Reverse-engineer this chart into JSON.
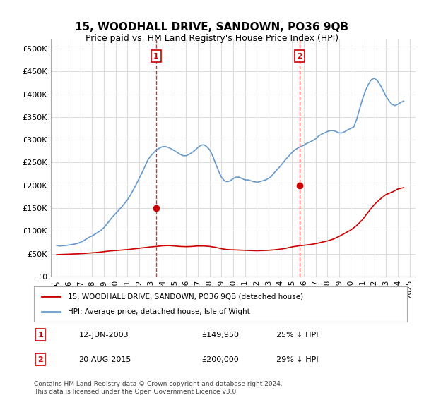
{
  "title": "15, WOODHALL DRIVE, SANDOWN, PO36 9QB",
  "subtitle": "Price paid vs. HM Land Registry's House Price Index (HPI)",
  "hpi_color": "#6699cc",
  "price_color": "#cc0000",
  "marker_color": "#cc0000",
  "background_color": "#ffffff",
  "grid_color": "#dddddd",
  "ylim": [
    0,
    520000
  ],
  "yticks": [
    0,
    50000,
    100000,
    150000,
    200000,
    250000,
    300000,
    350000,
    400000,
    450000,
    500000
  ],
  "ytick_labels": [
    "£0",
    "£50K",
    "£100K",
    "£150K",
    "£200K",
    "£250K",
    "£300K",
    "£350K",
    "£400K",
    "£450K",
    "£500K"
  ],
  "xlim_start": 1994.5,
  "xlim_end": 2025.5,
  "xticks": [
    1995,
    1996,
    1997,
    1998,
    1999,
    2000,
    2001,
    2002,
    2003,
    2004,
    2005,
    2006,
    2007,
    2008,
    2009,
    2010,
    2011,
    2012,
    2013,
    2014,
    2015,
    2016,
    2017,
    2018,
    2019,
    2020,
    2021,
    2022,
    2023,
    2024,
    2025
  ],
  "sale1_year": 2003.44,
  "sale1_price": 149950,
  "sale1_label": "1",
  "sale1_date": "12-JUN-2003",
  "sale1_pct": "25% ↓ HPI",
  "sale2_year": 2015.63,
  "sale2_price": 200000,
  "sale2_label": "2",
  "sale2_date": "20-AUG-2015",
  "sale2_pct": "29% ↓ HPI",
  "legend_line1": "15, WOODHALL DRIVE, SANDOWN, PO36 9QB (detached house)",
  "legend_line2": "HPI: Average price, detached house, Isle of Wight",
  "footer": "Contains HM Land Registry data © Crown copyright and database right 2024.\nThis data is licensed under the Open Government Licence v3.0.",
  "hpi_data_x": [
    1995.0,
    1995.25,
    1995.5,
    1995.75,
    1996.0,
    1996.25,
    1996.5,
    1996.75,
    1997.0,
    1997.25,
    1997.5,
    1997.75,
    1998.0,
    1998.25,
    1998.5,
    1998.75,
    1999.0,
    1999.25,
    1999.5,
    1999.75,
    2000.0,
    2000.25,
    2000.5,
    2000.75,
    2001.0,
    2001.25,
    2001.5,
    2001.75,
    2002.0,
    2002.25,
    2002.5,
    2002.75,
    2003.0,
    2003.25,
    2003.5,
    2003.75,
    2004.0,
    2004.25,
    2004.5,
    2004.75,
    2005.0,
    2005.25,
    2005.5,
    2005.75,
    2006.0,
    2006.25,
    2006.5,
    2006.75,
    2007.0,
    2007.25,
    2007.5,
    2007.75,
    2008.0,
    2008.25,
    2008.5,
    2008.75,
    2009.0,
    2009.25,
    2009.5,
    2009.75,
    2010.0,
    2010.25,
    2010.5,
    2010.75,
    2011.0,
    2011.25,
    2011.5,
    2011.75,
    2012.0,
    2012.25,
    2012.5,
    2012.75,
    2013.0,
    2013.25,
    2013.5,
    2013.75,
    2014.0,
    2014.25,
    2014.5,
    2014.75,
    2015.0,
    2015.25,
    2015.5,
    2015.75,
    2016.0,
    2016.25,
    2016.5,
    2016.75,
    2017.0,
    2017.25,
    2017.5,
    2017.75,
    2018.0,
    2018.25,
    2018.5,
    2018.75,
    2019.0,
    2019.25,
    2019.5,
    2019.75,
    2020.0,
    2020.25,
    2020.5,
    2020.75,
    2021.0,
    2021.25,
    2021.5,
    2021.75,
    2022.0,
    2022.25,
    2022.5,
    2022.75,
    2023.0,
    2023.25,
    2023.5,
    2023.75,
    2024.0,
    2024.25,
    2024.5
  ],
  "hpi_data_y": [
    68000,
    67000,
    67500,
    68000,
    69000,
    70000,
    71000,
    72500,
    75000,
    78000,
    82000,
    86000,
    89000,
    93000,
    97000,
    101000,
    107000,
    115000,
    123000,
    131000,
    138000,
    145000,
    152000,
    160000,
    168000,
    178000,
    190000,
    202000,
    215000,
    228000,
    242000,
    256000,
    265000,
    272000,
    278000,
    282000,
    285000,
    285000,
    283000,
    280000,
    276000,
    272000,
    268000,
    265000,
    265000,
    268000,
    272000,
    277000,
    283000,
    288000,
    289000,
    285000,
    278000,
    265000,
    248000,
    232000,
    218000,
    210000,
    208000,
    210000,
    215000,
    218000,
    218000,
    215000,
    212000,
    212000,
    210000,
    208000,
    207000,
    208000,
    210000,
    212000,
    215000,
    220000,
    228000,
    235000,
    242000,
    250000,
    258000,
    265000,
    272000,
    278000,
    282000,
    285000,
    288000,
    292000,
    295000,
    298000,
    302000,
    308000,
    312000,
    315000,
    318000,
    320000,
    320000,
    318000,
    315000,
    315000,
    318000,
    322000,
    325000,
    328000,
    345000,
    368000,
    390000,
    408000,
    422000,
    432000,
    435000,
    430000,
    420000,
    408000,
    395000,
    385000,
    378000,
    375000,
    378000,
    382000,
    385000
  ],
  "price_data_x": [
    1995.0,
    1995.5,
    1996.0,
    1996.5,
    1997.0,
    1997.5,
    1998.0,
    1998.5,
    1999.0,
    1999.5,
    2000.0,
    2000.5,
    2001.0,
    2001.5,
    2002.0,
    2002.5,
    2003.0,
    2003.5,
    2004.0,
    2004.5,
    2005.0,
    2005.5,
    2006.0,
    2006.5,
    2007.0,
    2007.5,
    2008.0,
    2008.5,
    2009.0,
    2009.5,
    2010.0,
    2010.5,
    2011.0,
    2011.5,
    2012.0,
    2012.5,
    2013.0,
    2013.5,
    2014.0,
    2014.5,
    2015.0,
    2015.5,
    2016.0,
    2016.5,
    2017.0,
    2017.5,
    2018.0,
    2018.5,
    2019.0,
    2019.5,
    2020.0,
    2020.5,
    2021.0,
    2021.5,
    2022.0,
    2022.5,
    2023.0,
    2023.5,
    2024.0,
    2024.5
  ],
  "price_data_y": [
    48000,
    48500,
    49000,
    49500,
    50000,
    51000,
    52000,
    53000,
    54500,
    56000,
    57000,
    58000,
    59000,
    60500,
    62000,
    63500,
    65000,
    66000,
    67500,
    68000,
    67000,
    66000,
    65500,
    66000,
    67000,
    67000,
    66000,
    64000,
    61000,
    59000,
    58500,
    58000,
    57500,
    57000,
    56500,
    57000,
    57500,
    58500,
    60000,
    62000,
    65000,
    67000,
    68500,
    70000,
    72000,
    75000,
    78000,
    82000,
    88000,
    95000,
    102000,
    112000,
    125000,
    142000,
    158000,
    170000,
    180000,
    185000,
    192000,
    195000
  ]
}
